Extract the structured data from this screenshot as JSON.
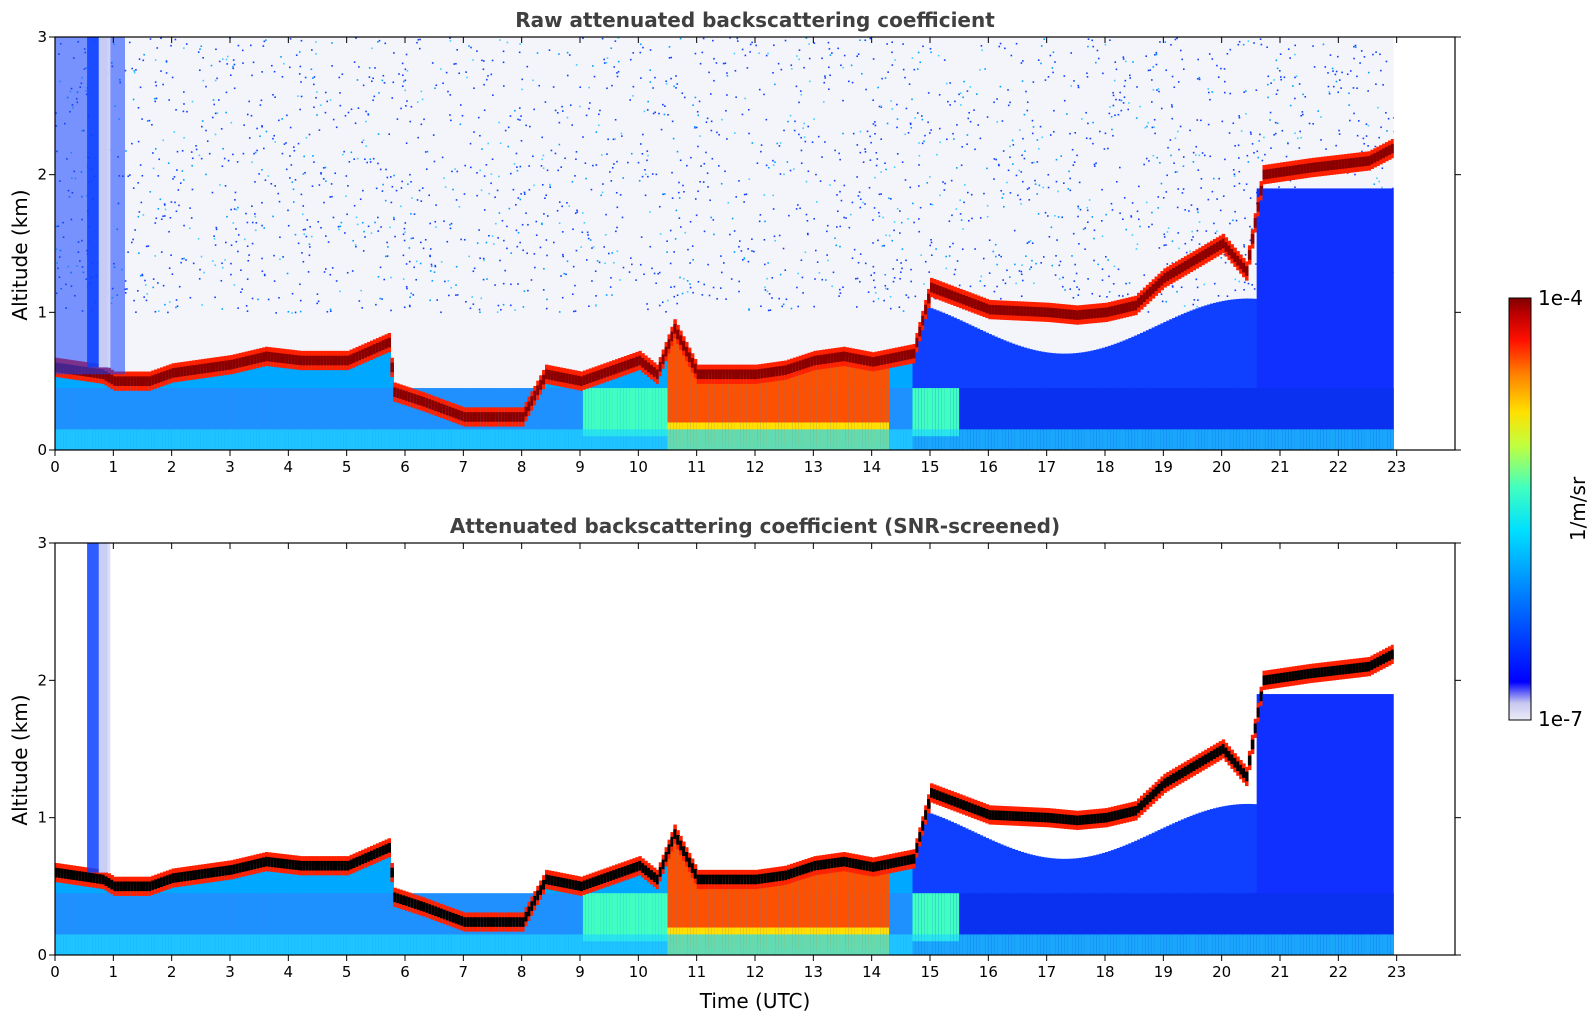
{
  "chart_data": [
    {
      "type": "heatmap",
      "title": "Raw attenuated backscattering coefficient",
      "xlabel": "",
      "ylabel": "Altitude (km)",
      "xlim": [
        0,
        24
      ],
      "ylim": [
        0,
        3
      ],
      "data_end_time": 22.95,
      "xticks": [
        "0",
        "1",
        "2",
        "3",
        "4",
        "5",
        "6",
        "7",
        "8",
        "9",
        "10",
        "11",
        "12",
        "13",
        "14",
        "15",
        "16",
        "17",
        "18",
        "19",
        "20",
        "21",
        "22",
        "23"
      ],
      "yticks": [
        "0",
        "1",
        "2",
        "3"
      ],
      "screened": false,
      "layer_top_profile": [
        [
          0.0,
          0.6
        ],
        [
          0.8,
          0.55
        ],
        [
          1.0,
          0.5
        ],
        [
          1.6,
          0.5
        ],
        [
          2.0,
          0.56
        ],
        [
          3.0,
          0.62
        ],
        [
          3.6,
          0.68
        ],
        [
          4.2,
          0.65
        ],
        [
          5.0,
          0.65
        ],
        [
          5.7,
          0.78
        ],
        [
          5.8,
          0.42
        ],
        [
          6.3,
          0.35
        ],
        [
          7.0,
          0.24
        ],
        [
          8.0,
          0.24
        ],
        [
          8.4,
          0.55
        ],
        [
          9.0,
          0.5
        ],
        [
          10.0,
          0.65
        ],
        [
          10.3,
          0.55
        ],
        [
          10.6,
          0.88
        ],
        [
          11.0,
          0.55
        ],
        [
          12.0,
          0.55
        ],
        [
          12.5,
          0.58
        ],
        [
          13.0,
          0.65
        ],
        [
          13.5,
          0.68
        ],
        [
          14.0,
          0.64
        ],
        [
          14.7,
          0.7
        ],
        [
          15.0,
          1.18
        ],
        [
          16.0,
          1.02
        ],
        [
          17.0,
          1.0
        ],
        [
          17.5,
          0.98
        ],
        [
          18.0,
          1.0
        ],
        [
          18.5,
          1.05
        ],
        [
          19.0,
          1.25
        ],
        [
          20.0,
          1.5
        ],
        [
          20.4,
          1.3
        ],
        [
          20.7,
          2.0
        ],
        [
          21.5,
          2.05
        ],
        [
          22.5,
          2.1
        ],
        [
          22.95,
          2.2
        ]
      ]
    },
    {
      "type": "heatmap",
      "title": "Attenuated backscattering coefficient (SNR-screened)",
      "xlabel": "Time (UTC)",
      "ylabel": "Altitude (km)",
      "xlim": [
        0,
        24
      ],
      "ylim": [
        0,
        3
      ],
      "data_end_time": 22.95,
      "xticks": [
        "0",
        "1",
        "2",
        "3",
        "4",
        "5",
        "6",
        "7",
        "8",
        "9",
        "10",
        "11",
        "12",
        "13",
        "14",
        "15",
        "16",
        "17",
        "18",
        "19",
        "20",
        "21",
        "22",
        "23"
      ],
      "yticks": [
        "0",
        "1",
        "2",
        "3"
      ],
      "screened": true
    }
  ],
  "colorbar": {
    "label": "1/m/sr",
    "max_label": "1e-4",
    "min_label": "1e-7",
    "colormap": "jet",
    "colors": [
      "#ebebf8",
      "#c8c8f0",
      "#0000ff",
      "#0080ff",
      "#00e0ff",
      "#40ffc0",
      "#c0ff40",
      "#ffe000",
      "#ff8000",
      "#ff1000",
      "#c00000",
      "#800000"
    ]
  }
}
